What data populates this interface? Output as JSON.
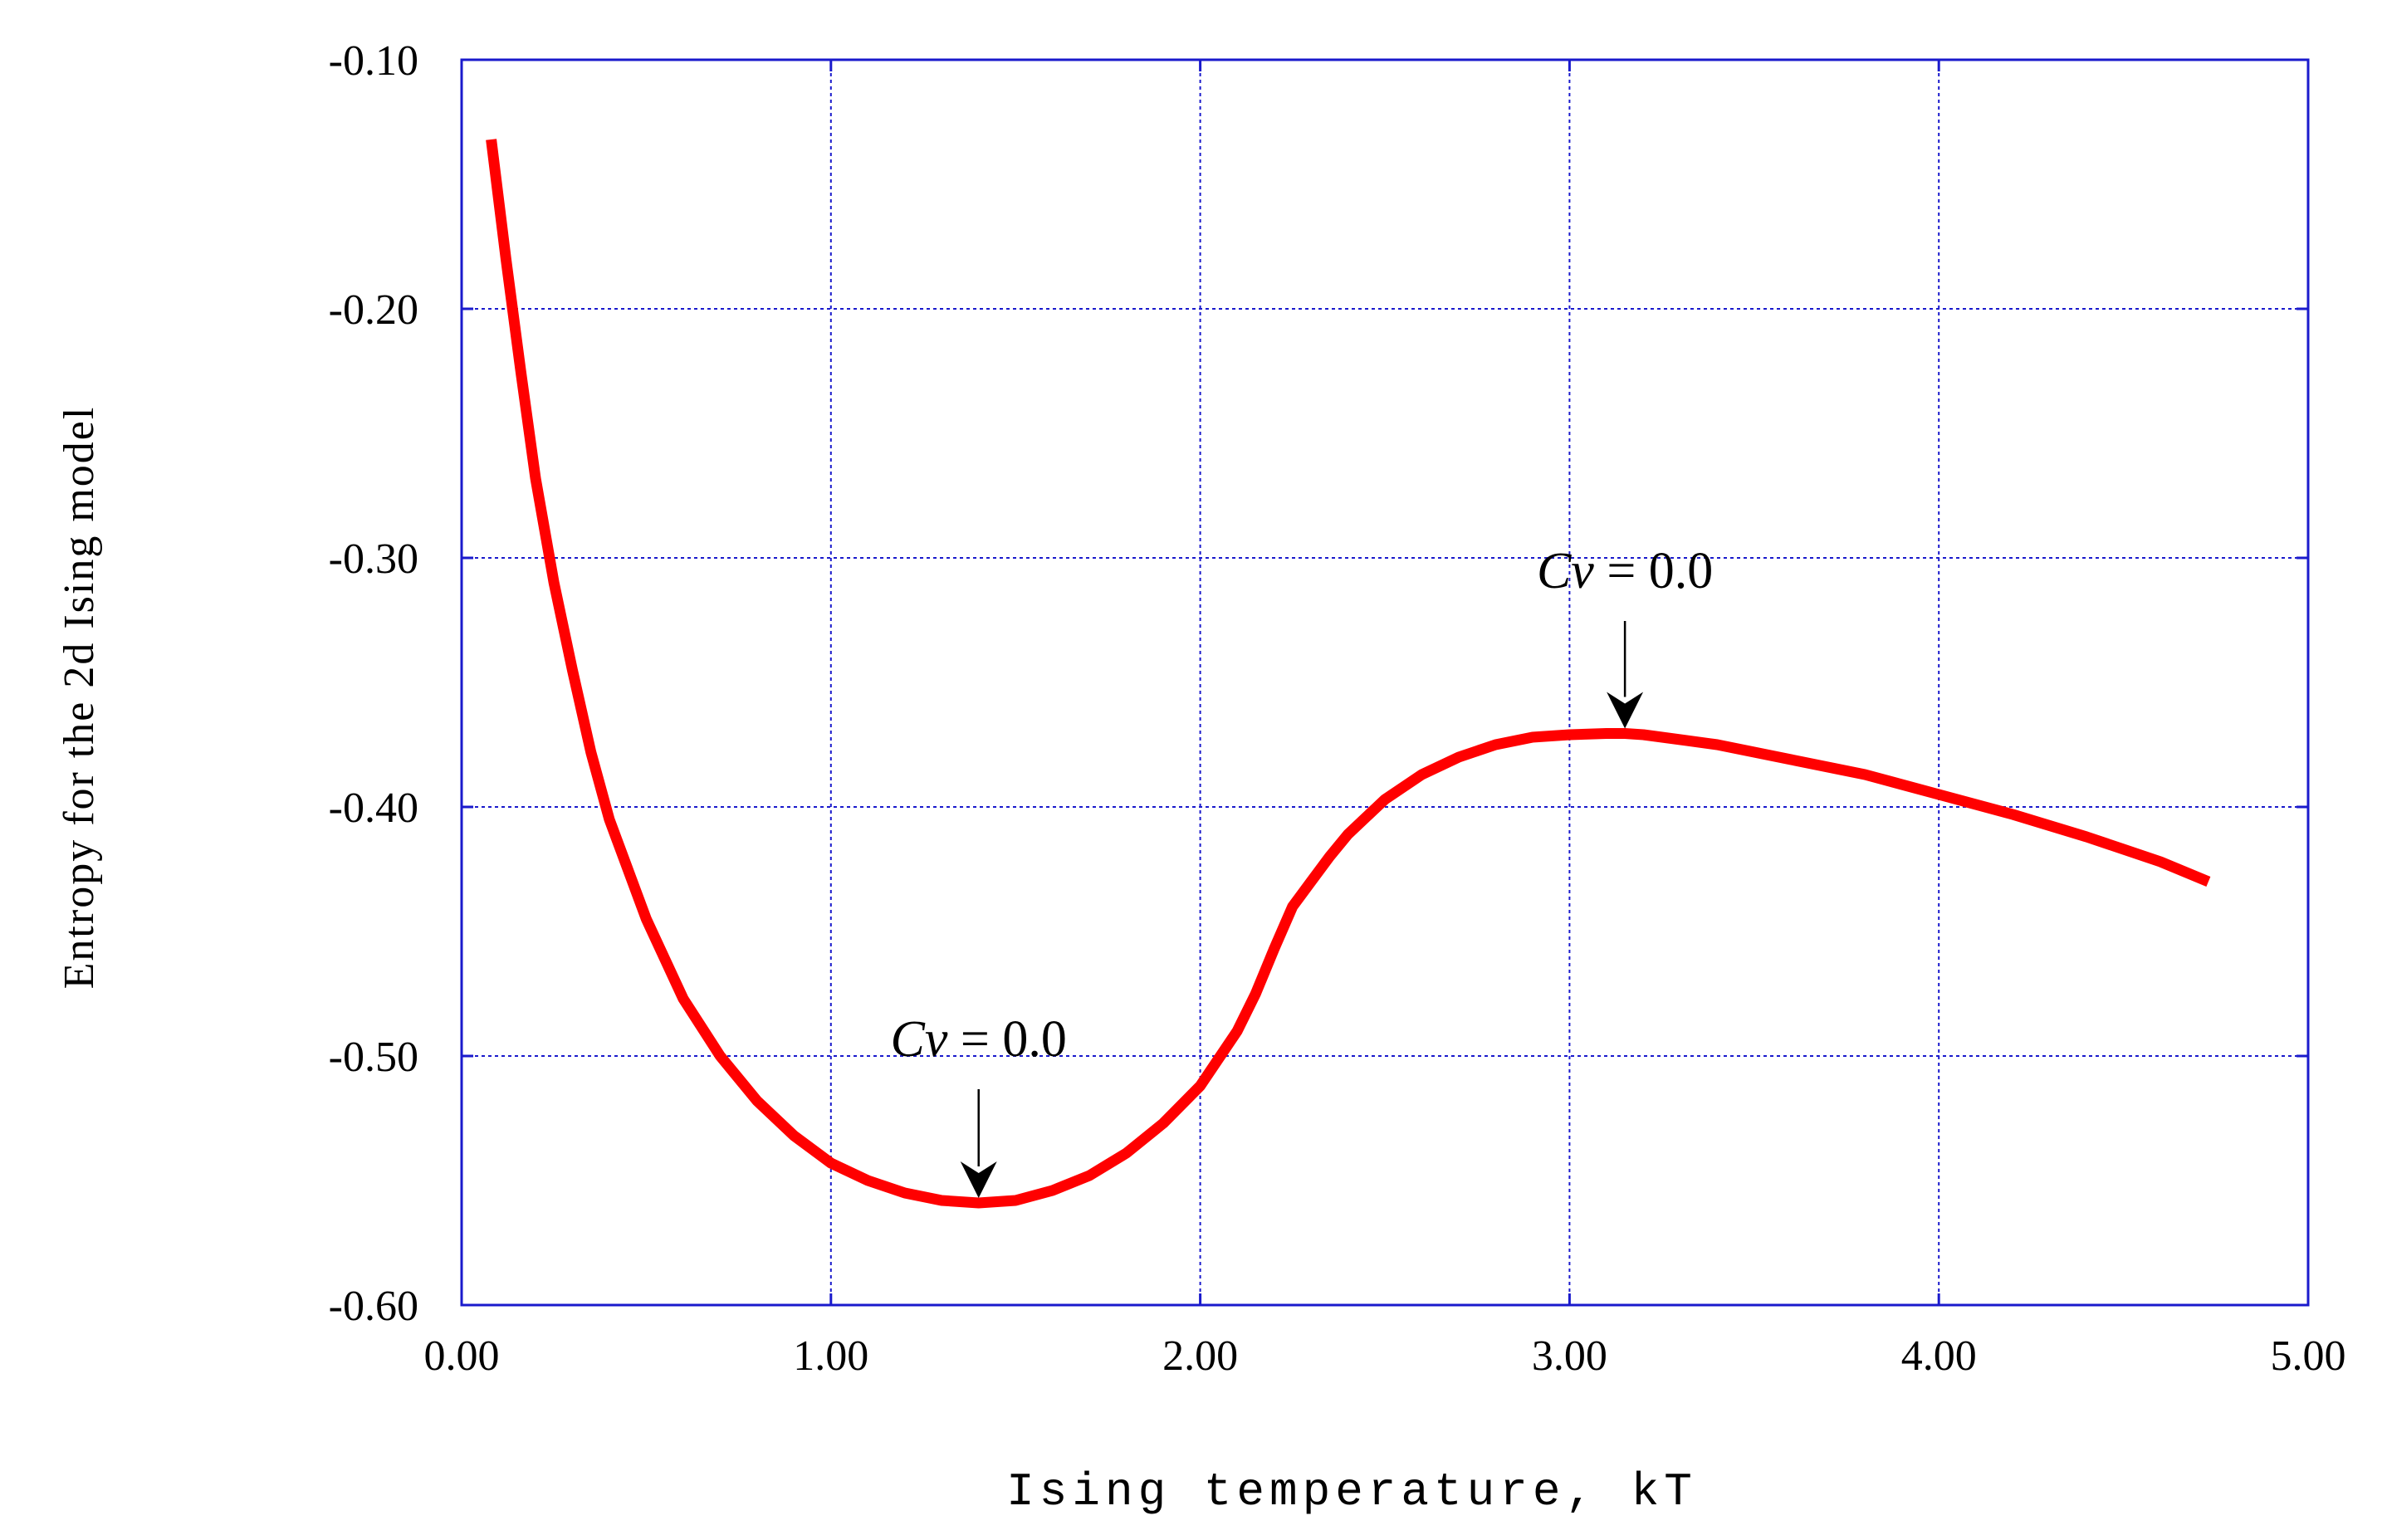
{
  "chart_data": {
    "type": "line",
    "title": "",
    "xlabel": "Ising temperature, kT",
    "ylabel": "Entropy for the 2d Ising model",
    "xlim": [
      0,
      5
    ],
    "ylim": [
      -0.6,
      -0.1
    ],
    "x_ticks": [
      "0.00",
      "1.00",
      "2.00",
      "3.00",
      "4.00",
      "5.00"
    ],
    "y_ticks": [
      "-0.10",
      "-0.20",
      "-0.30",
      "-0.40",
      "-0.50",
      "-0.60"
    ],
    "grid": true,
    "legend": "none",
    "series": [
      {
        "color": "#ff0000",
        "x": [
          0.08,
          0.12,
          0.16,
          0.2,
          0.25,
          0.3,
          0.35,
          0.4,
          0.5,
          0.6,
          0.7,
          0.8,
          0.9,
          1.0,
          1.1,
          1.2,
          1.3,
          1.4,
          1.5,
          1.6,
          1.7,
          1.8,
          1.9,
          2.0,
          2.1,
          2.15,
          2.2,
          2.25,
          2.27,
          2.3,
          2.35,
          2.4,
          2.5,
          2.6,
          2.7,
          2.8,
          2.9,
          3.0,
          3.1,
          3.15,
          3.2,
          3.4,
          3.6,
          3.8,
          4.0,
          4.2,
          4.4,
          4.6,
          4.73
        ],
        "y": [
          -0.132,
          -0.18,
          -0.225,
          -0.268,
          -0.31,
          -0.345,
          -0.378,
          -0.405,
          -0.445,
          -0.477,
          -0.5,
          -0.518,
          -0.532,
          -0.543,
          -0.55,
          -0.555,
          -0.558,
          -0.559,
          -0.558,
          -0.554,
          -0.548,
          -0.539,
          -0.527,
          -0.512,
          -0.49,
          -0.475,
          -0.457,
          -0.44,
          -0.436,
          -0.43,
          -0.42,
          -0.411,
          -0.397,
          -0.387,
          -0.38,
          -0.375,
          -0.372,
          -0.371,
          -0.3705,
          -0.3705,
          -0.371,
          -0.375,
          -0.381,
          -0.387,
          -0.395,
          -0.403,
          -0.412,
          -0.422,
          -0.43
        ]
      }
    ],
    "annotations": [
      {
        "label_italic": "Cv",
        "label_rest": " = 0.0",
        "point": [
          1.4,
          -0.559
        ],
        "text_at": [
          1.4,
          -0.5
        ]
      },
      {
        "label_italic": "Cv",
        "label_rest": " = 0.0",
        "point": [
          3.15,
          -0.3705
        ],
        "text_at": [
          3.15,
          -0.312
        ]
      }
    ]
  },
  "colors": {
    "line": "#ff0000",
    "grid": "#1a1acc",
    "frame": "#1a1acc",
    "text": "#000000"
  }
}
